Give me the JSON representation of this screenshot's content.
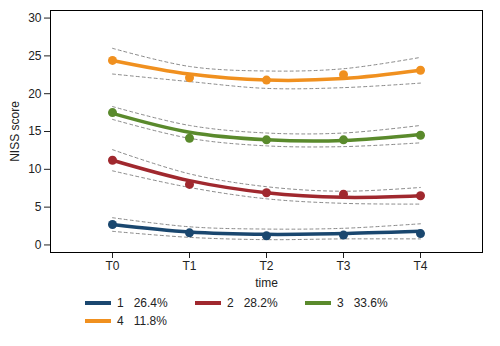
{
  "chart_data": {
    "type": "line",
    "x_label": "time",
    "y_label": "NISS score",
    "categories": [
      "T0",
      "T1",
      "T2",
      "T3",
      "T4"
    ],
    "ylim": [
      -1,
      31
    ],
    "yticks": [
      0,
      5,
      10,
      15,
      20,
      25,
      30
    ],
    "grid": false,
    "legend": "bottom",
    "series": [
      {
        "name": "1   26.4%",
        "color": "#1a476f",
        "marker": "circle",
        "values": [
          2.7,
          1.7,
          1.4,
          1.5,
          1.8
        ],
        "observed": [
          2.7,
          1.6,
          1.2,
          1.3,
          1.5
        ],
        "lower": [
          1.8,
          1.0,
          0.7,
          0.8,
          0.8
        ],
        "upper": [
          3.6,
          2.4,
          2.1,
          2.2,
          2.8
        ]
      },
      {
        "name": "2   28.2%",
        "color": "#a0282e",
        "marker": "circle",
        "values": [
          11.2,
          8.5,
          6.9,
          6.3,
          6.5
        ],
        "observed": [
          11.2,
          8.0,
          6.9,
          6.7,
          6.5
        ],
        "lower": [
          9.8,
          7.6,
          6.1,
          5.5,
          5.4
        ],
        "upper": [
          12.6,
          9.4,
          7.7,
          7.1,
          7.6
        ]
      },
      {
        "name": "3   33.6%",
        "color": "#5a8a2c",
        "marker": "circle",
        "values": [
          17.4,
          14.9,
          13.9,
          13.8,
          14.6
        ],
        "observed": [
          17.5,
          14.1,
          13.9,
          13.9,
          14.5
        ],
        "lower": [
          16.6,
          14.1,
          13.1,
          13.0,
          13.5
        ],
        "upper": [
          18.3,
          15.8,
          14.8,
          14.8,
          15.8
        ]
      },
      {
        "name": "4   11.8%",
        "color": "#f0901f",
        "marker": "circle",
        "values": [
          24.4,
          22.6,
          21.8,
          22.0,
          23.1
        ],
        "observed": [
          24.4,
          22.1,
          21.8,
          22.5,
          23.1
        ],
        "lower": [
          22.6,
          21.6,
          20.7,
          20.8,
          21.4
        ],
        "upper": [
          26.0,
          23.6,
          23.0,
          23.3,
          24.8
        ]
      }
    ]
  }
}
